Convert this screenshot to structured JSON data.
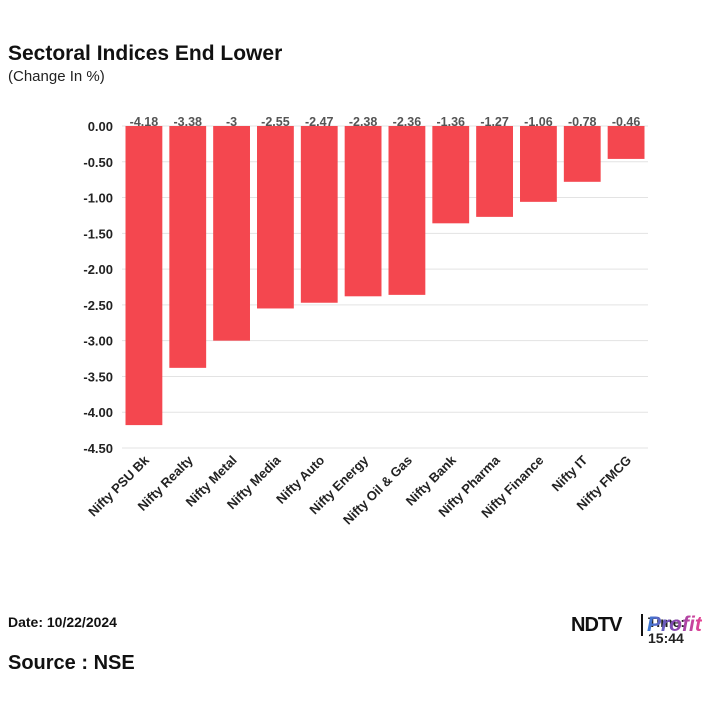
{
  "header": {
    "title": "Sectoral Indices End Lower",
    "subtitle": "(Change In %)"
  },
  "footer": {
    "date": "Date: 10/22/2024",
    "time": "Time: 15:44",
    "source": "Source : NSE",
    "logo_ndtv": "NDTV",
    "logo_profit": "Profit"
  },
  "colors": {
    "bar": "#f4474f",
    "grid": "#e3e3e3",
    "label": "#555555"
  },
  "chart_data": {
    "type": "bar",
    "title": "Sectoral Indices End Lower",
    "ylabel": "(Change In %)",
    "xlabel": "",
    "categories": [
      "Nifty PSU Bk",
      "Nifty Realty",
      "Nifty Metal",
      "Nifty Media",
      "Nifty Auto",
      "Nifty Energy",
      "Nifty Oil & Gas",
      "Nifty Bank",
      "Nifty Pharma",
      "Nifty Finance",
      "Nifty IT",
      "Nifty FMCG"
    ],
    "values": [
      -4.18,
      -3.38,
      -3,
      -2.55,
      -2.47,
      -2.38,
      -2.36,
      -1.36,
      -1.27,
      -1.06,
      -0.78,
      -0.46
    ],
    "value_labels": [
      "-4.18",
      "-3.38",
      "-3",
      "-2.55",
      "-2.47",
      "-2.38",
      "-2.36",
      "-1.36",
      "-1.27",
      "-1.06",
      "-0.78",
      "-0.46"
    ],
    "ylim": [
      -4.5,
      0
    ],
    "yticks": [
      0,
      -0.5,
      -1,
      -1.5,
      -2,
      -2.5,
      -3,
      -3.5,
      -4,
      -4.5
    ],
    "ytick_labels": [
      "0.00",
      "-0.50",
      "-1.00",
      "-1.50",
      "-2.00",
      "-2.50",
      "-3.00",
      "-3.50",
      "-4.00",
      "-4.50"
    ],
    "grid": true,
    "legend": "none"
  }
}
